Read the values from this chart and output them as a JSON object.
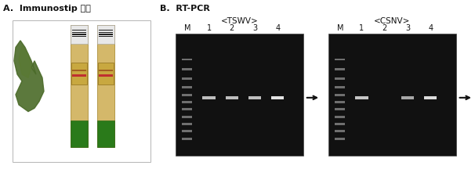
{
  "title_A": "A.  Immunostip 키트",
  "title_B": "B.  RT-PCR",
  "subtitle_TSWV": "<TSWV>",
  "subtitle_CSNV": "<CSNV>",
  "lane_labels": [
    "M",
    "1",
    "2",
    "3",
    "4"
  ],
  "fig_bg": "#ffffff",
  "text_color": "#111111",
  "gel_bg": "#111111",
  "strip_beige": "#d4b86a",
  "strip_green": "#2a7a1a",
  "strip_white_cap": "#e8e8e8",
  "leaf_dark": "#4a6a28",
  "leaf_mid": "#5a7a30",
  "figsize": [
    6.06,
    2.16
  ],
  "dpi": 100,
  "tswv_band_colors": [
    "#c8c8c8",
    "#c8c8c8",
    "#c8c8c8",
    "#f0f0f0"
  ],
  "csnv_band_colors": [
    "#d0d0d0",
    "#000000",
    "#b0b0b0",
    "#e8e8e8"
  ],
  "ladder_color": "#888888",
  "arrow_color": "#111111",
  "panel_bg": "#f2f2f2"
}
